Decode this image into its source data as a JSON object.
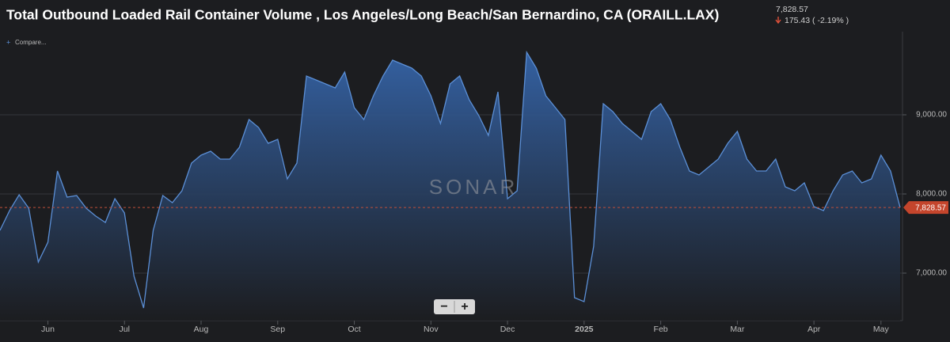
{
  "chart_data": {
    "type": "area",
    "title": "Total Outbound Loaded Rail Container Volume , Los Angeles/Long Beach/San Bernardino, CA (ORAILL.LAX)",
    "current": {
      "value": 7828.57,
      "label": "7,828.57"
    },
    "change": "175.43 ( -2.19% )",
    "compare": "Compare...",
    "watermark": "SONAR",
    "zoom_out": "−",
    "zoom_in": "+",
    "color": "#5b8fd6",
    "grid": true,
    "categories": [
      null,
      null,
      null,
      null,
      null,
      "Jun",
      null,
      null,
      null,
      null,
      null,
      null,
      null,
      "Jul",
      null,
      null,
      null,
      null,
      null,
      null,
      null,
      "Aug",
      null,
      null,
      null,
      null,
      null,
      null,
      null,
      "Sep",
      null,
      null,
      null,
      null,
      null,
      null,
      null,
      "Oct",
      null,
      null,
      null,
      null,
      null,
      null,
      null,
      "Nov",
      null,
      null,
      null,
      null,
      null,
      null,
      null,
      "Dec",
      null,
      null,
      null,
      null,
      null,
      null,
      null,
      "2025",
      null,
      null,
      null,
      null,
      null,
      null,
      null,
      "Feb",
      null,
      null,
      null,
      null,
      null,
      null,
      null,
      "Mar",
      null,
      null,
      null,
      null,
      null,
      null,
      null,
      "Apr",
      null,
      null,
      null,
      null,
      null,
      null,
      "May",
      null,
      null
    ],
    "values": [
      7540,
      7790,
      7990,
      7820,
      7140,
      7390,
      8290,
      7960,
      7980,
      7820,
      7720,
      7640,
      7940,
      7760,
      6960,
      6560,
      7540,
      7980,
      7890,
      8040,
      8390,
      8490,
      8540,
      8440,
      8440,
      8590,
      8940,
      8840,
      8640,
      8690,
      8190,
      8390,
      9490,
      9440,
      9390,
      9340,
      9540,
      9090,
      8940,
      9240,
      9490,
      9690,
      9640,
      9590,
      9490,
      9240,
      8890,
      9390,
      9490,
      9190,
      8990,
      8740,
      9290,
      7940,
      8040,
      9790,
      9590,
      9240,
      9090,
      8940,
      6690,
      6640,
      7340,
      9140,
      9040,
      8890,
      8790,
      8690,
      9040,
      9140,
      8940,
      8590,
      8290,
      8240,
      8340,
      8440,
      8640,
      8790,
      8440,
      8290,
      8290,
      8440,
      8090,
      8040,
      8140,
      7840,
      7790,
      8040,
      8240,
      8290,
      8140,
      8190,
      8490,
      8290,
      7828.57
    ],
    "ylim": [
      6400,
      10050
    ],
    "yticks": [
      {
        "value": 7000,
        "label": "7,000.00"
      },
      {
        "value": 8000,
        "label": "8,000.00"
      },
      {
        "value": 9000,
        "label": "9,000.00"
      }
    ]
  }
}
